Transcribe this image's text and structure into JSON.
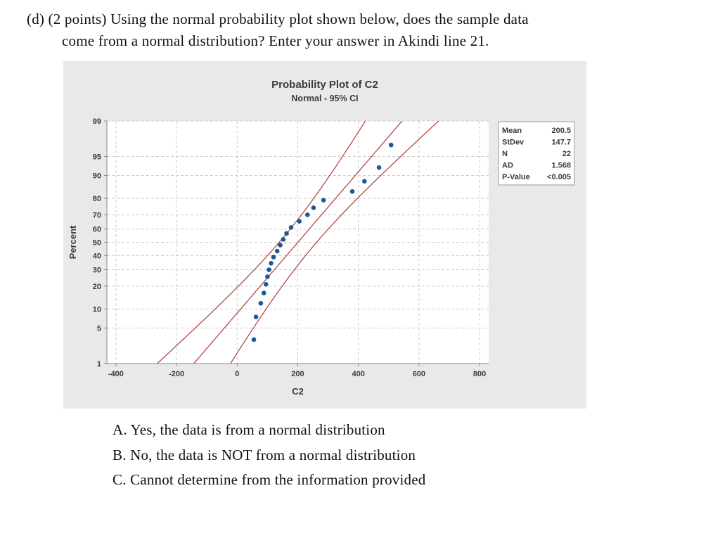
{
  "question": {
    "line1": "(d) (2 points) Using the normal probability plot shown below, does the sample data",
    "line2": "come from a normal distribution? Enter your answer in Akindi line 21."
  },
  "choices": [
    "A. Yes, the data is from a normal distribution",
    "B. No, the data is NOT from a normal distribution",
    "C. Cannot determine from the information provided"
  ],
  "chart_data": {
    "type": "scatter",
    "title": "Probability Plot of C2",
    "subtitle": "Normal - 95% CI",
    "xlabel": "C2",
    "ylabel": "Percent",
    "x_ticks": [
      -400,
      -200,
      0,
      200,
      400,
      600,
      800
    ],
    "y_ticks": [
      1,
      5,
      10,
      20,
      30,
      40,
      50,
      60,
      70,
      80,
      90,
      95,
      99
    ],
    "xlim": [
      -430,
      830
    ],
    "ylim_percent": [
      1,
      99
    ],
    "grid": "dashed",
    "legend_position": "none",
    "fit": {
      "mean": 200.5,
      "stdev": 147.7,
      "n": 22,
      "ci_z": 1.96
    },
    "points": [
      {
        "x": 55,
        "pct": 3.1
      },
      {
        "x": 62,
        "pct": 7.6
      },
      {
        "x": 78,
        "pct": 12.1
      },
      {
        "x": 88,
        "pct": 16.5
      },
      {
        "x": 95,
        "pct": 21.0
      },
      {
        "x": 100,
        "pct": 25.4
      },
      {
        "x": 105,
        "pct": 29.9
      },
      {
        "x": 112,
        "pct": 34.4
      },
      {
        "x": 120,
        "pct": 38.8
      },
      {
        "x": 132,
        "pct": 43.3
      },
      {
        "x": 142,
        "pct": 47.8
      },
      {
        "x": 152,
        "pct": 52.2
      },
      {
        "x": 163,
        "pct": 56.7
      },
      {
        "x": 178,
        "pct": 61.2
      },
      {
        "x": 205,
        "pct": 65.6
      },
      {
        "x": 232,
        "pct": 70.1
      },
      {
        "x": 252,
        "pct": 74.6
      },
      {
        "x": 285,
        "pct": 79.0
      },
      {
        "x": 380,
        "pct": 83.5
      },
      {
        "x": 420,
        "pct": 87.9
      },
      {
        "x": 468,
        "pct": 92.4
      },
      {
        "x": 508,
        "pct": 96.9
      }
    ],
    "stats": {
      "rows": [
        [
          "Mean",
          "200.5"
        ],
        [
          "StDev",
          "147.7"
        ],
        [
          "N",
          "22"
        ],
        [
          "AD",
          "1.568"
        ],
        [
          "P-Value",
          "<0.005"
        ]
      ]
    },
    "colors": {
      "point": "#1d5796",
      "ci_line": "#b23a3a",
      "grid": "#cccccc",
      "axis": "#8a8a8a",
      "panel_bg": "#e9e9e9",
      "plot_bg": "#ffffff",
      "text": "#3b3b3b"
    }
  }
}
